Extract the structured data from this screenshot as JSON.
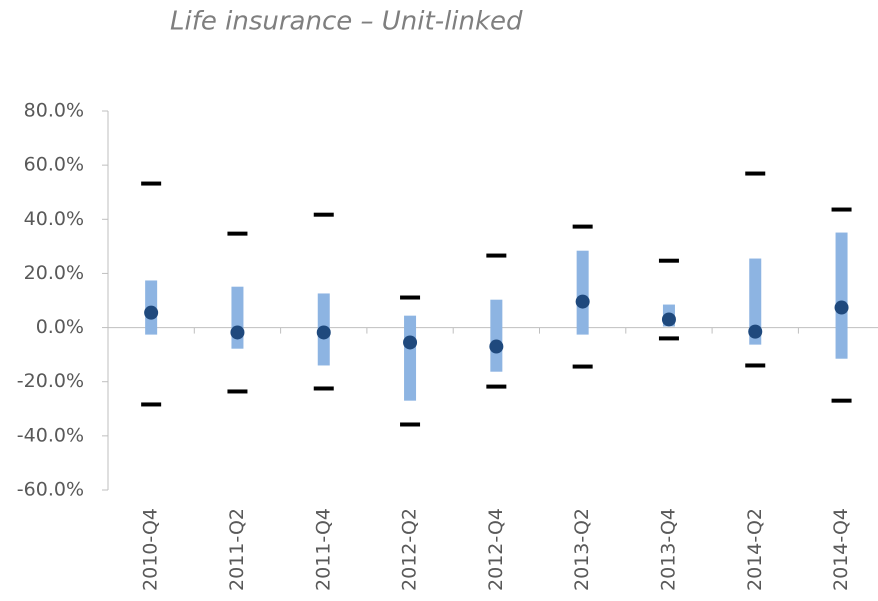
{
  "chart_data": {
    "type": "range",
    "title": "Life insurance – Unit-linked",
    "categories": [
      "2010-Q4",
      "2011-Q2",
      "2011-Q4",
      "2012-Q2",
      "2012-Q4",
      "2013-Q2",
      "2013-Q4",
      "2014-Q2",
      "2014-Q4"
    ],
    "max": [
      53.2,
      34.7,
      41.7,
      11.1,
      26.6,
      37.3,
      24.7,
      56.9,
      43.6
    ],
    "high": [
      17.4,
      15.1,
      12.6,
      4.4,
      10.3,
      28.4,
      8.5,
      25.5,
      35.1
    ],
    "median": [
      5.5,
      -1.8,
      -1.8,
      -5.5,
      -7.0,
      9.6,
      3.0,
      -1.5,
      7.4
    ],
    "low": [
      -2.6,
      -7.8,
      -14.0,
      -27.0,
      -16.3,
      -2.6,
      0.4,
      -6.3,
      -11.5
    ],
    "min": [
      -28.4,
      -23.6,
      -22.5,
      -35.8,
      -21.8,
      -14.4,
      -4.0,
      -14.0,
      -27.0
    ],
    "box_color": "#8db4e2",
    "median_color": "#1f497d",
    "extreme_color": "#000000",
    "ylim": [
      -60,
      80
    ],
    "yticks": [
      {
        "value": -60,
        "label": "-60.0%"
      },
      {
        "value": -40,
        "label": "-40.0%"
      },
      {
        "value": -20,
        "label": "-20.0%"
      },
      {
        "value": 0,
        "label": "0.0%"
      },
      {
        "value": 20,
        "label": "20.0%"
      },
      {
        "value": 40,
        "label": "40.0%"
      },
      {
        "value": 60,
        "label": "60.0%"
      },
      {
        "value": 80,
        "label": "80.0%"
      }
    ],
    "grid": false
  }
}
